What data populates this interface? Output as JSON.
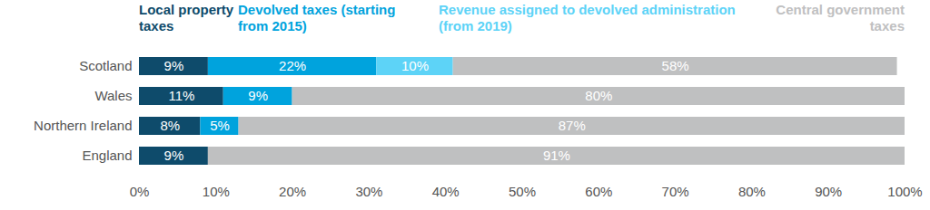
{
  "chart_data": {
    "type": "bar",
    "orientation": "horizontal",
    "stacked": true,
    "data_labels": true,
    "grid": false,
    "legend": "top",
    "categories": [
      "Scotland",
      "Wales",
      "Northern Ireland",
      "England"
    ],
    "series": [
      {
        "name": "Local property taxes",
        "color": "#0e4b6b",
        "values": [
          9,
          11,
          8,
          9
        ],
        "value_labels": [
          "9%",
          "11%",
          "8%",
          "9%"
        ]
      },
      {
        "name": "Devolved taxes (starting from 2015)",
        "color": "#00a3dd",
        "values": [
          22,
          9,
          5,
          null
        ],
        "value_labels": [
          "22%",
          "9%",
          "5%",
          null
        ]
      },
      {
        "name": "Revenue assigned to devolved administration (from 2019)",
        "color": "#5dd3f7",
        "values": [
          10,
          null,
          null,
          null
        ],
        "value_labels": [
          "10%",
          null,
          null,
          null
        ]
      },
      {
        "name": "Central government taxes",
        "color": "#bfc0c1",
        "values": [
          58,
          80,
          87,
          91
        ],
        "value_labels": [
          "58%",
          "80%",
          "87%",
          "91%"
        ]
      }
    ],
    "xlim": [
      0,
      100
    ],
    "xticks": [
      {
        "value": 0,
        "label": "0%"
      },
      {
        "value": 10,
        "label": "10%"
      },
      {
        "value": 20,
        "label": "20%"
      },
      {
        "value": 30,
        "label": "30%"
      },
      {
        "value": 40,
        "label": "40%"
      },
      {
        "value": 50,
        "label": "50%"
      },
      {
        "value": 60,
        "label": "60%"
      },
      {
        "value": 70,
        "label": "70%"
      },
      {
        "value": 80,
        "label": "80%"
      },
      {
        "value": 90,
        "label": "90%"
      },
      {
        "value": 100,
        "label": "100%"
      }
    ]
  }
}
